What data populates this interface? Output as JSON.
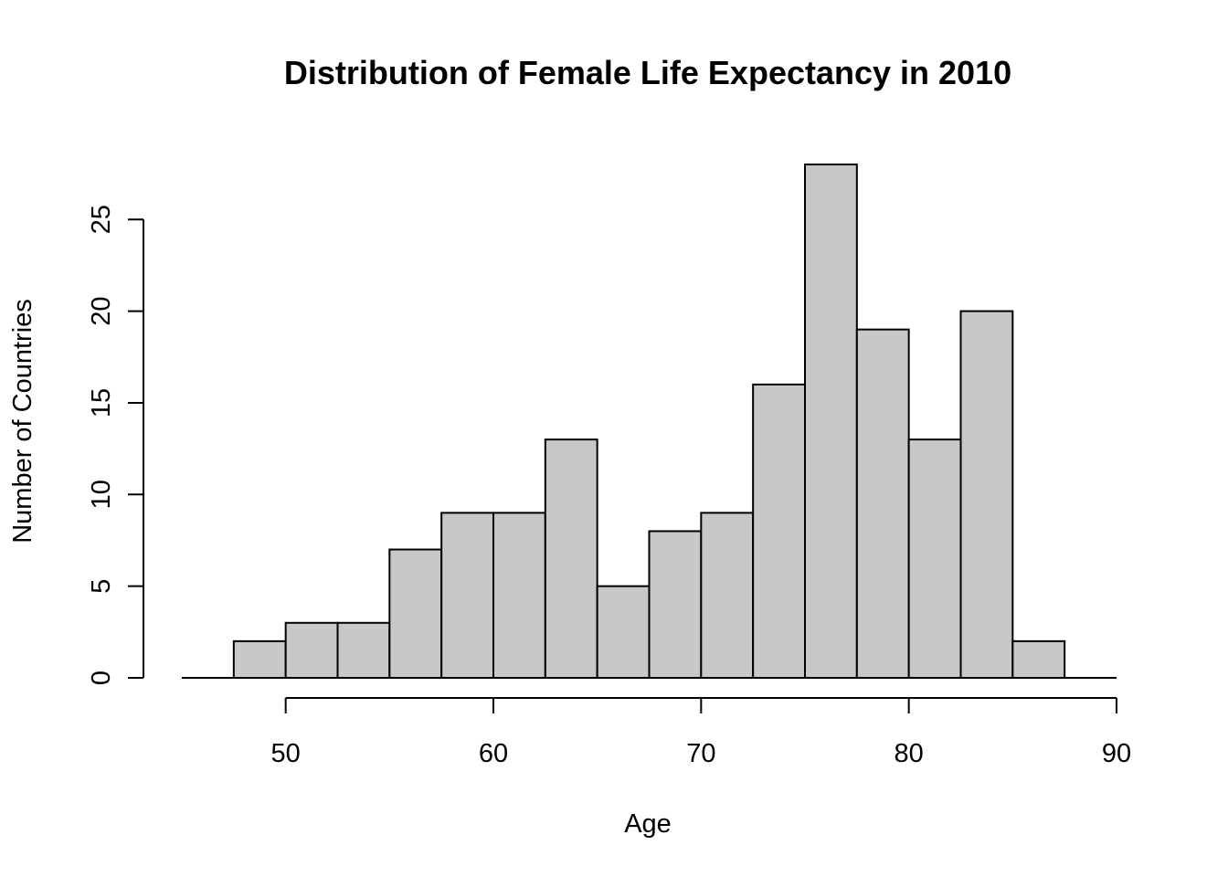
{
  "chart_data": {
    "type": "bar",
    "title": "Distribution of Female Life Expectancy in 2010",
    "xlabel": "Age",
    "ylabel": "Number of Countries",
    "xlim": [
      45,
      90
    ],
    "ylim": [
      0,
      28
    ],
    "x_ticks": [
      50,
      60,
      70,
      80,
      90
    ],
    "y_ticks": [
      0,
      5,
      10,
      15,
      20,
      25
    ],
    "bin_width": 2.5,
    "bins": [
      {
        "start": 47.5,
        "end": 50.0,
        "value": 2
      },
      {
        "start": 50.0,
        "end": 52.5,
        "value": 3
      },
      {
        "start": 52.5,
        "end": 55.0,
        "value": 3
      },
      {
        "start": 55.0,
        "end": 57.5,
        "value": 7
      },
      {
        "start": 57.5,
        "end": 60.0,
        "value": 9
      },
      {
        "start": 60.0,
        "end": 62.5,
        "value": 9
      },
      {
        "start": 62.5,
        "end": 65.0,
        "value": 13
      },
      {
        "start": 65.0,
        "end": 67.5,
        "value": 5
      },
      {
        "start": 67.5,
        "end": 70.0,
        "value": 8
      },
      {
        "start": 70.0,
        "end": 72.5,
        "value": 9
      },
      {
        "start": 72.5,
        "end": 75.0,
        "value": 16
      },
      {
        "start": 75.0,
        "end": 77.5,
        "value": 28
      },
      {
        "start": 77.5,
        "end": 80.0,
        "value": 19
      },
      {
        "start": 80.0,
        "end": 82.5,
        "value": 13
      },
      {
        "start": 82.5,
        "end": 85.0,
        "value": 20
      },
      {
        "start": 85.0,
        "end": 87.5,
        "value": 2
      }
    ],
    "bar_color": "#c8c8c8",
    "edge_color": "#000000",
    "grid": false,
    "legend": "none"
  }
}
